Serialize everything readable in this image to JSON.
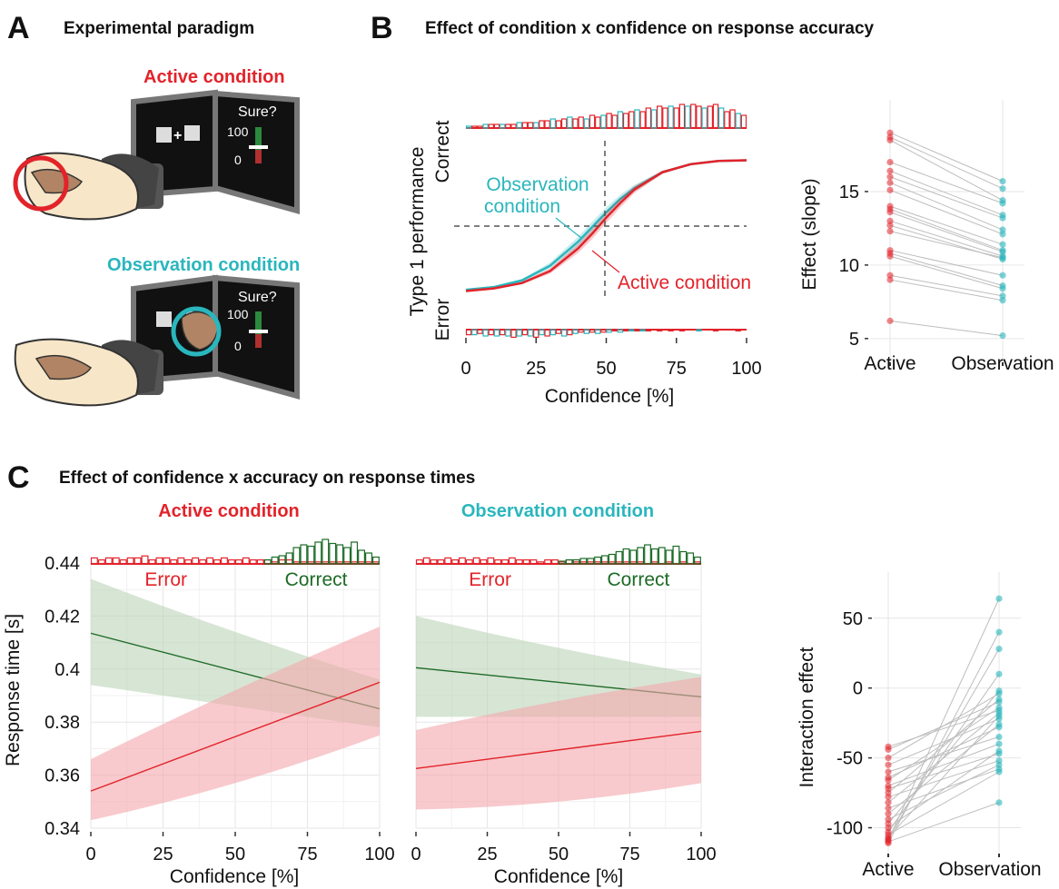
{
  "panel_letters": {
    "a": "A",
    "b": "B",
    "c": "C"
  },
  "panel_a": {
    "title": "Experimental paradigm",
    "active_label": "Active condition",
    "observation_label": "Observation condition",
    "screen_prompt": "Sure?",
    "scale_top": "100",
    "scale_bottom": "0"
  },
  "colors": {
    "active": "#e2232a",
    "observation": "#2ab6bd",
    "correct": "#1d6b27",
    "error": "#e2232a",
    "active_band": "#f4a7ab",
    "correct_band": "#bcd4b8"
  },
  "chart_data": [
    {
      "id": "B_left",
      "type": "line",
      "title": "Effect of condition x confidence on response accuracy",
      "xlabel": "Confidence [%]",
      "ylabel": "Type 1 performance",
      "y_top_label": "Correct",
      "y_bottom_label": "Error",
      "xlim": [
        0,
        100
      ],
      "ylim": [
        0,
        1
      ],
      "x_ticks": [
        "0",
        "25",
        "50",
        "75",
        "100"
      ],
      "reference_lines": {
        "x": 48,
        "y": 0.5
      },
      "annotations": {
        "observation": "Observation\ncondition",
        "active": "Active condition"
      },
      "series": [
        {
          "name": "Observation condition",
          "x": [
            0,
            10,
            20,
            30,
            40,
            45,
            50,
            55,
            60,
            70,
            80,
            90,
            100
          ],
          "values": [
            0.02,
            0.04,
            0.09,
            0.2,
            0.38,
            0.49,
            0.6,
            0.7,
            0.78,
            0.9,
            0.96,
            0.985,
            0.99
          ]
        },
        {
          "name": "Active condition",
          "x": [
            0,
            10,
            20,
            30,
            40,
            45,
            50,
            55,
            60,
            70,
            80,
            90,
            100
          ],
          "values": [
            0.01,
            0.03,
            0.07,
            0.16,
            0.33,
            0.44,
            0.56,
            0.67,
            0.77,
            0.9,
            0.96,
            0.985,
            0.99
          ]
        }
      ],
      "histogram_correct": [
        1,
        1,
        1,
        2,
        2,
        2,
        2,
        2,
        2,
        3,
        3,
        3,
        3,
        4,
        4,
        5,
        4,
        5,
        6,
        5,
        6,
        5,
        7,
        6,
        7,
        8,
        7,
        9,
        8,
        9,
        10,
        9,
        11,
        10,
        12,
        11,
        12,
        11,
        13,
        12,
        13,
        12,
        11,
        12,
        13,
        11,
        9,
        10,
        8,
        7
      ],
      "histogram_error": [
        4,
        4,
        3,
        5,
        4,
        5,
        4,
        5,
        6,
        5,
        4,
        5,
        6,
        4,
        5,
        4,
        3,
        5,
        4,
        3,
        2,
        3,
        2,
        3,
        2,
        2,
        1,
        2,
        1,
        1,
        1,
        1,
        1,
        0,
        1,
        0,
        1,
        0,
        1,
        0,
        0,
        1,
        0,
        0,
        1,
        0,
        0,
        0,
        1,
        0
      ]
    },
    {
      "id": "B_right",
      "type": "scatter",
      "ylabel": "Effect (slope)",
      "categories": [
        "Active",
        "Observation"
      ],
      "y_ticks": [
        "5",
        "10",
        "15"
      ],
      "ylim": [
        4,
        20
      ],
      "pairs": [
        [
          19,
          15.7
        ],
        [
          18.7,
          15.2
        ],
        [
          18.5,
          14.4
        ],
        [
          17,
          14.2
        ],
        [
          16.4,
          13.4
        ],
        [
          16,
          13.2
        ],
        [
          15.6,
          12.4
        ],
        [
          15.1,
          12.1
        ],
        [
          14,
          11.4
        ],
        [
          13.8,
          11
        ],
        [
          13.6,
          10.9
        ],
        [
          13,
          10.6
        ],
        [
          12.7,
          10.4
        ],
        [
          12.3,
          10.5
        ],
        [
          11,
          9.3
        ],
        [
          10.8,
          8.6
        ],
        [
          10.6,
          8.4
        ],
        [
          9.3,
          7.9
        ],
        [
          9,
          7.6
        ],
        [
          6.2,
          5.2
        ]
      ]
    },
    {
      "id": "C_active",
      "type": "line",
      "title": "Effect of confidence x accuracy on response times",
      "panel_heading": "Active condition",
      "xlabel": "Confidence [%]",
      "ylabel": "Response time [s]",
      "xlim": [
        0,
        100
      ],
      "ylim": [
        0.34,
        0.44
      ],
      "x_ticks": [
        "0",
        "25",
        "50",
        "75",
        "100"
      ],
      "y_ticks": [
        "0.34",
        "0.36",
        "0.38",
        "0.4",
        "0.42",
        "0.44"
      ],
      "hist_labels": {
        "error": "Error",
        "correct": "Correct"
      },
      "series": [
        {
          "name": "Correct",
          "x": [
            0,
            100
          ],
          "values": [
            0.4135,
            0.385
          ],
          "band_low": [
            0.394,
            0.378
          ],
          "band_high": [
            0.434,
            0.396
          ]
        },
        {
          "name": "Error",
          "x": [
            0,
            100
          ],
          "values": [
            0.354,
            0.395
          ],
          "band_low": [
            0.343,
            0.375
          ],
          "band_high": [
            0.366,
            0.416
          ]
        }
      ],
      "histogram_error": [
        3,
        2,
        3,
        3,
        2,
        3,
        3,
        4,
        2,
        3,
        3,
        2,
        3,
        2,
        3,
        2,
        3,
        2,
        3,
        2,
        2,
        3,
        2,
        2,
        2,
        1,
        2,
        2,
        1,
        1,
        1,
        1,
        1,
        1,
        1,
        1,
        1,
        1,
        1,
        1
      ],
      "histogram_correct": [
        0,
        0,
        0,
        0,
        0,
        0,
        0,
        0,
        0,
        0,
        0,
        0,
        0,
        0,
        0,
        0,
        0,
        0,
        0,
        0,
        0,
        0,
        0,
        0,
        3,
        5,
        6,
        8,
        12,
        14,
        13,
        16,
        18,
        15,
        14,
        12,
        16,
        10,
        8,
        5
      ]
    },
    {
      "id": "C_observation",
      "type": "line",
      "panel_heading": "Observation condition",
      "xlabel": "Confidence [%]",
      "xlim": [
        0,
        100
      ],
      "ylim": [
        0.34,
        0.44
      ],
      "x_ticks": [
        "0",
        "25",
        "50",
        "75",
        "100"
      ],
      "hist_labels": {
        "error": "Error",
        "correct": "Correct"
      },
      "series": [
        {
          "name": "Correct",
          "x": [
            0,
            100
          ],
          "values": [
            0.4005,
            0.3895
          ],
          "band_low": [
            0.382,
            0.382
          ],
          "band_high": [
            0.42,
            0.398
          ]
        },
        {
          "name": "Error",
          "x": [
            0,
            100
          ],
          "values": [
            0.3625,
            0.3765
          ],
          "band_low": [
            0.347,
            0.357
          ],
          "band_high": [
            0.377,
            0.397
          ]
        }
      ],
      "histogram_error": [
        2,
        3,
        2,
        2,
        3,
        2,
        3,
        2,
        3,
        2,
        3,
        2,
        2,
        3,
        2,
        2,
        2,
        1,
        2,
        2,
        1,
        2,
        1,
        1,
        1,
        1,
        1,
        1,
        1,
        1,
        1,
        1,
        0,
        1,
        0,
        1,
        0,
        1,
        0,
        1
      ],
      "histogram_correct": [
        0,
        0,
        0,
        0,
        0,
        0,
        0,
        0,
        0,
        0,
        0,
        0,
        0,
        0,
        0,
        0,
        0,
        0,
        0,
        0,
        2,
        3,
        3,
        4,
        4,
        5,
        6,
        7,
        9,
        11,
        10,
        12,
        14,
        11,
        12,
        10,
        13,
        9,
        8,
        5
      ]
    },
    {
      "id": "C_right",
      "type": "scatter",
      "ylabel": "Interaction effect",
      "categories": [
        "Active",
        "Observation"
      ],
      "y_ticks": [
        "-100",
        "-50",
        "0",
        "50"
      ],
      "ylim": [
        -112,
        70
      ],
      "pairs": [
        [
          -42,
          -16
        ],
        [
          -44,
          -10
        ],
        [
          -50,
          -4
        ],
        [
          -55,
          -22
        ],
        [
          -60,
          -35
        ],
        [
          -64,
          -28
        ],
        [
          -66,
          -14
        ],
        [
          -70,
          -40
        ],
        [
          -72,
          -47
        ],
        [
          -75,
          -8
        ],
        [
          -78,
          -52
        ],
        [
          -82,
          -18
        ],
        [
          -86,
          -58
        ],
        [
          -90,
          -26
        ],
        [
          -94,
          -55
        ],
        [
          -97,
          -2
        ],
        [
          -100,
          -45
        ],
        [
          -103,
          10
        ],
        [
          -105,
          -60
        ],
        [
          -107,
          -20
        ],
        [
          -108,
          28
        ],
        [
          -110,
          -82
        ],
        [
          -111,
          40
        ],
        [
          -109,
          64
        ]
      ]
    }
  ]
}
